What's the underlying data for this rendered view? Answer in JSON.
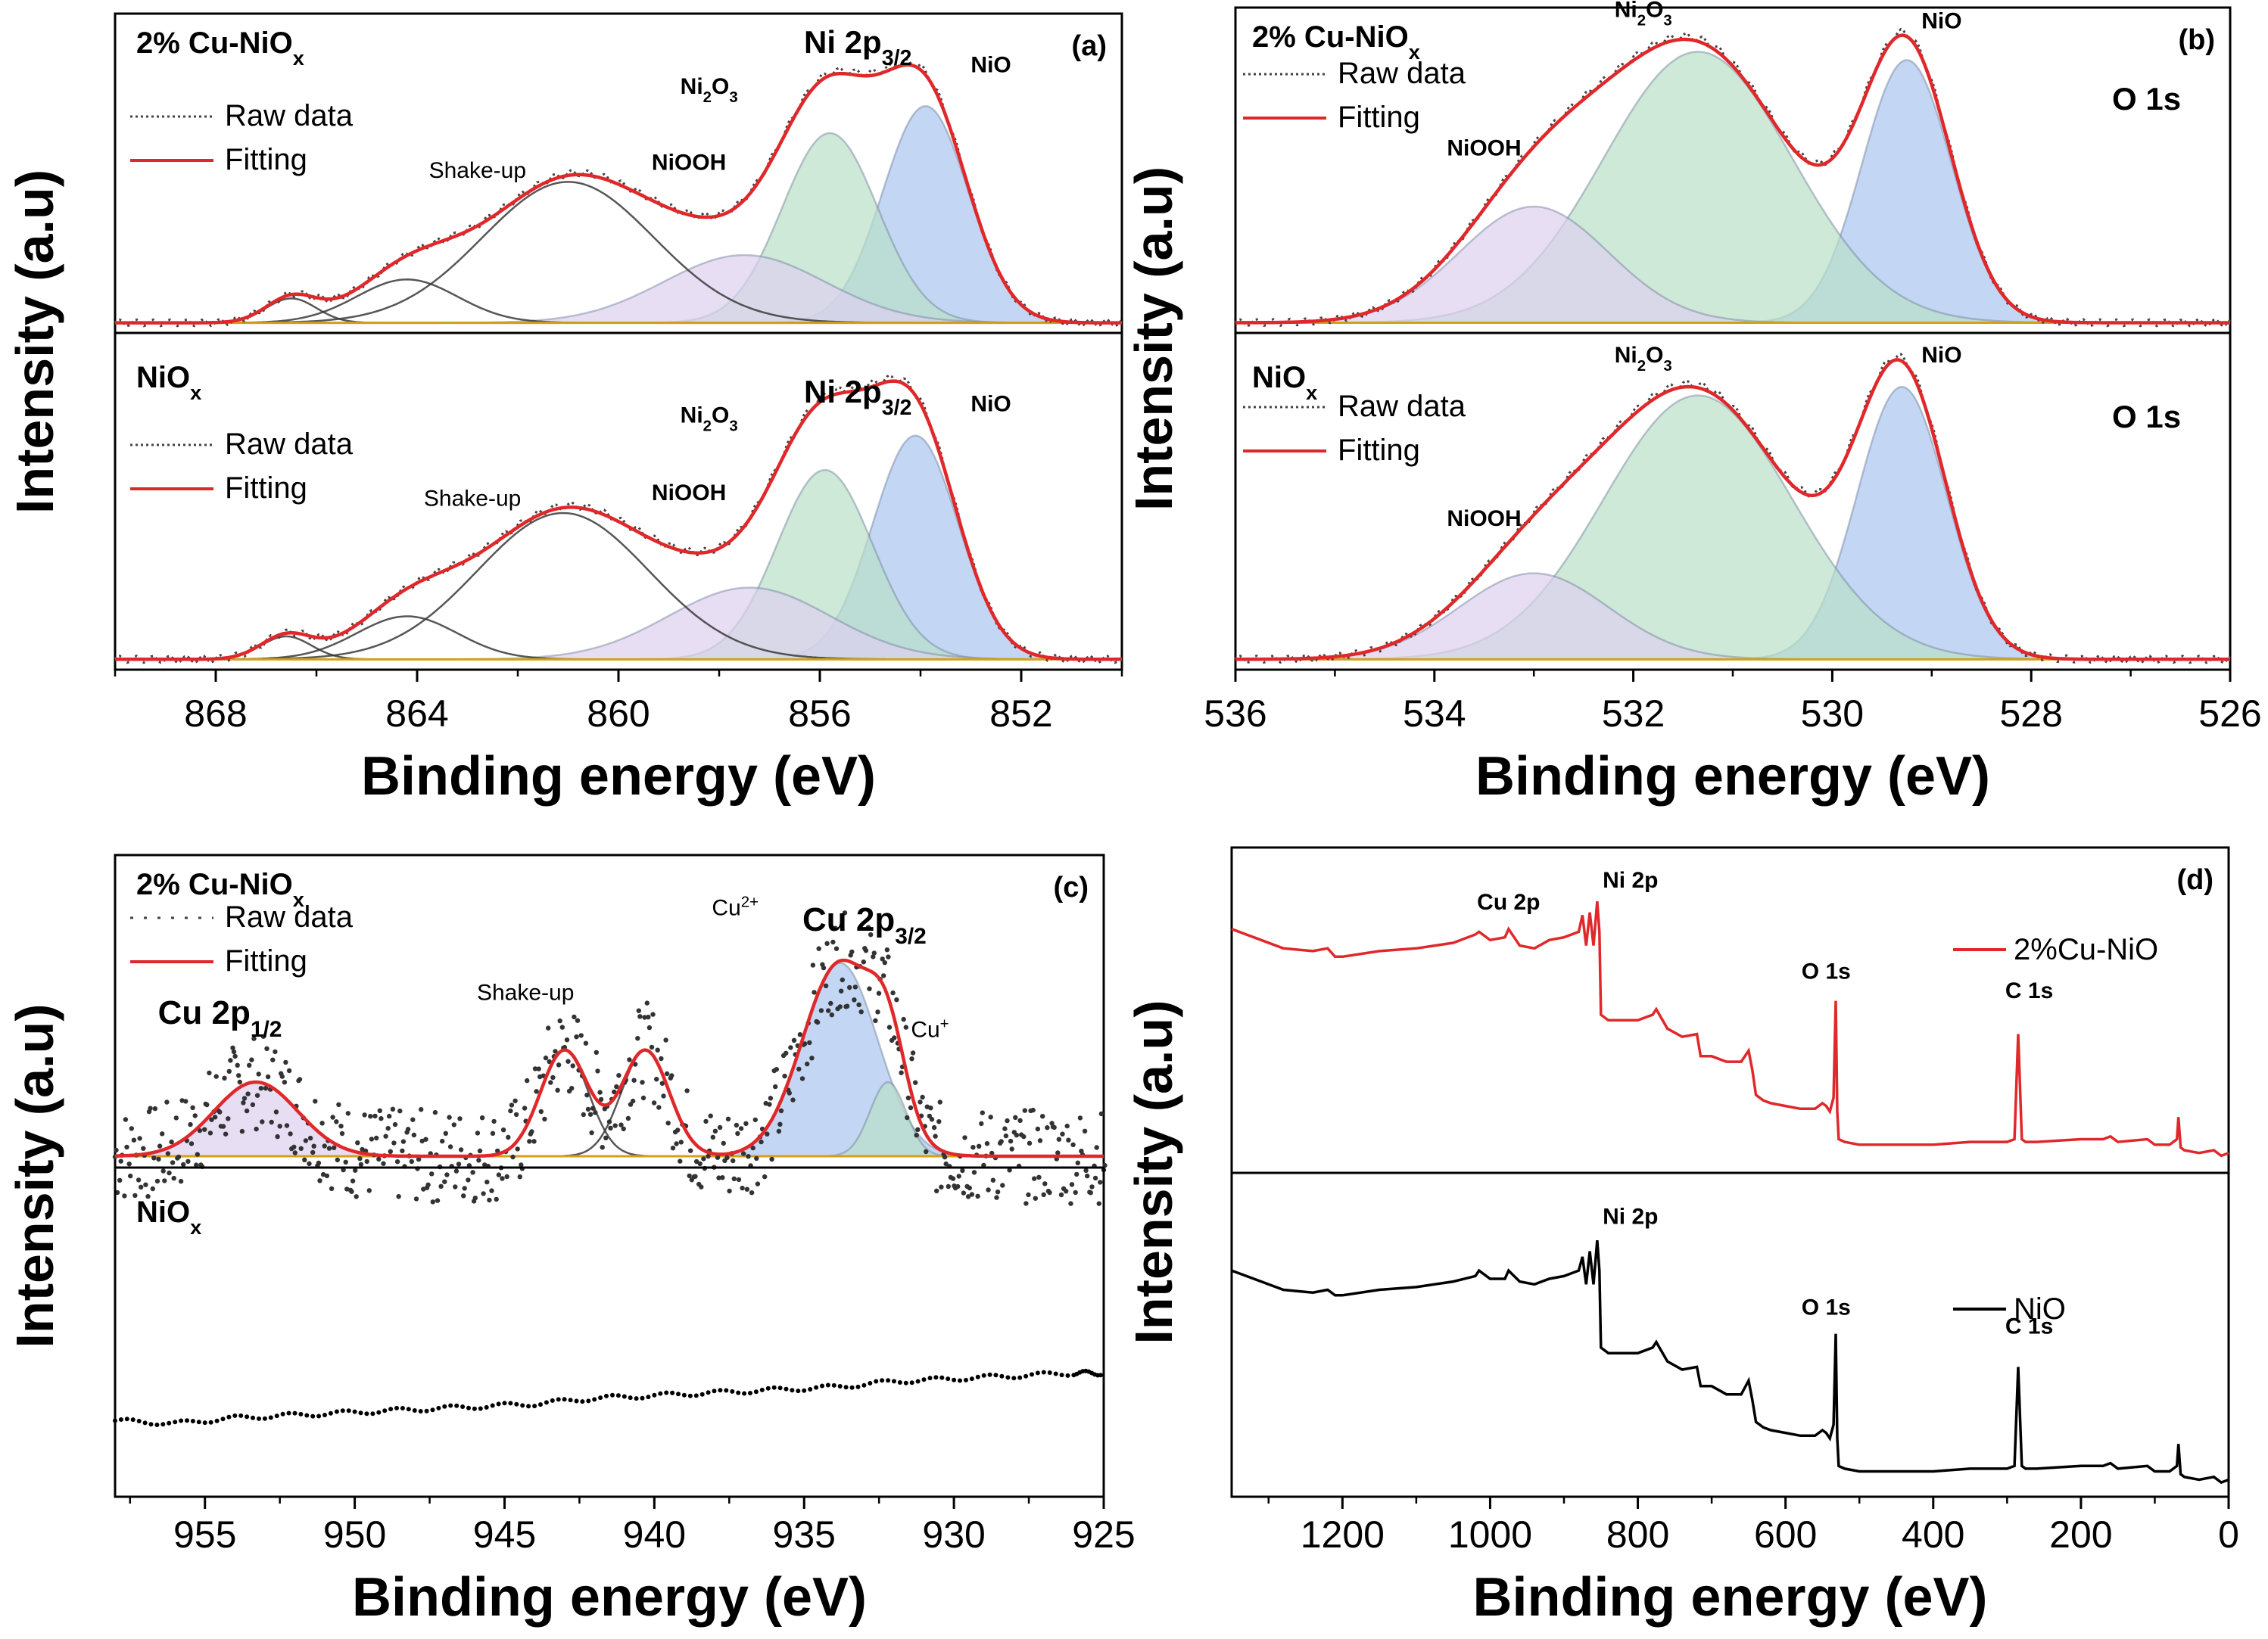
{
  "figure": {
    "caption_hidden": ""
  },
  "chart_data": [
    {
      "id": "a",
      "type": "line",
      "panel_tag": "(a)",
      "xlabel": "Binding energy (eV)",
      "ylabel": "Intensity (a.u)",
      "xlim": [
        870,
        850
      ],
      "xticks": [
        868,
        864,
        860,
        856,
        852
      ],
      "tick_labels": [
        "868",
        "864",
        "860",
        "856",
        "852"
      ],
      "subplots": [
        {
          "sample": "2% Cu-NiO",
          "sample_sub": "x",
          "region": "Ni 2p",
          "region_sub": "3/2",
          "legend": [
            "Raw data",
            "Fitting"
          ],
          "ylim": [
            0,
            1.1
          ],
          "baseline": 0.015,
          "peaks": [
            {
              "label": "NiO",
              "center": 853.9,
              "amp": 0.8,
              "width": 0.85,
              "fill": "#a9c4ee"
            },
            {
              "label": "Ni2O3",
              "label_main": "Ni",
              "label_s1": "2",
              "label_mid": "O",
              "label_s2": "3",
              "center": 855.8,
              "amp": 0.7,
              "width": 0.95,
              "fill": "#b9e0c8"
            },
            {
              "label": "NiOOH",
              "center": 857.5,
              "amp": 0.25,
              "width": 1.6,
              "fill": "#ddd0f0"
            },
            {
              "label": "Shake-up",
              "center": 861.0,
              "amp": 0.52,
              "width": 1.7,
              "fill": "none"
            },
            {
              "label": "",
              "center": 864.2,
              "amp": 0.16,
              "width": 1.0,
              "fill": "none"
            },
            {
              "label": "",
              "center": 866.5,
              "amp": 0.09,
              "width": 0.5,
              "fill": "none"
            }
          ],
          "annotations": [
            {
              "text": "Shake-up",
              "x": 862.8,
              "y": 0.55
            },
            {
              "text": "NiOOH",
              "x": 858.6,
              "y": 0.58
            },
            {
              "text": "Ni2O3",
              "x": 858.2,
              "y": 0.86
            },
            {
              "text": "NiO",
              "x": 852.6,
              "y": 0.94
            }
          ]
        },
        {
          "sample": "NiO",
          "sample_sub": "x",
          "region": "Ni 2p",
          "region_sub": "3/2",
          "legend": [
            "Raw data",
            "Fitting"
          ],
          "ylim": [
            0,
            1.1
          ],
          "baseline": 0.015,
          "peaks": [
            {
              "label": "NiO",
              "center": 854.1,
              "amp": 0.78,
              "width": 0.85,
              "fill": "#a9c4ee"
            },
            {
              "label": "Ni2O3",
              "center": 855.9,
              "amp": 0.66,
              "width": 0.95,
              "fill": "#b9e0c8"
            },
            {
              "label": "NiOOH",
              "center": 857.4,
              "amp": 0.25,
              "width": 1.6,
              "fill": "#ddd0f0"
            },
            {
              "label": "Shake-up",
              "center": 861.1,
              "amp": 0.51,
              "width": 1.7,
              "fill": "none"
            },
            {
              "label": "",
              "center": 864.2,
              "amp": 0.15,
              "width": 1.0,
              "fill": "none"
            },
            {
              "label": "",
              "center": 866.6,
              "amp": 0.08,
              "width": 0.5,
              "fill": "none"
            }
          ],
          "annotations": [
            {
              "text": "Shake-up",
              "x": 862.9,
              "y": 0.55
            },
            {
              "text": "NiOOH",
              "x": 858.6,
              "y": 0.57
            },
            {
              "text": "Ni2O3",
              "x": 858.2,
              "y": 0.84
            },
            {
              "text": "NiO",
              "x": 852.6,
              "y": 0.88
            }
          ]
        }
      ]
    },
    {
      "id": "b",
      "type": "line",
      "panel_tag": "(b)",
      "xlabel": "Binding energy (eV)",
      "ylabel": "Intensity (a.u)",
      "xlim": [
        536,
        526
      ],
      "xticks": [
        536,
        534,
        532,
        530,
        528,
        526
      ],
      "tick_labels": [
        "536",
        "534",
        "532",
        "530",
        "528",
        "526"
      ],
      "subplots": [
        {
          "sample": "2% Cu-NiO",
          "sample_sub": "x",
          "region": "O 1s",
          "region_sub": "",
          "legend": [
            "Raw data",
            "Fitting"
          ],
          "ylim": [
            0,
            1.1
          ],
          "baseline": 0.015,
          "peaks": [
            {
              "label": "NiO",
              "center": 529.25,
              "amp": 0.95,
              "width": 0.45,
              "fill": "#a9c4ee"
            },
            {
              "label": "Ni2O3",
              "center": 531.35,
              "amp": 0.98,
              "width": 0.95,
              "fill": "#b9e0c8"
            },
            {
              "label": "NiOOH",
              "center": 533.0,
              "amp": 0.42,
              "width": 0.75,
              "fill": "#ddd0f0"
            }
          ],
          "annotations": [
            {
              "text": "Ni2O3",
              "x": 531.9,
              "y": 1.12
            },
            {
              "text": "NiO",
              "x": 528.9,
              "y": 1.08
            },
            {
              "text": "NiOOH",
              "x": 533.5,
              "y": 0.62
            }
          ]
        },
        {
          "sample": "NiO",
          "sample_sub": "x",
          "region": "O 1s",
          "region_sub": "",
          "legend": [
            "Raw data",
            "Fitting"
          ],
          "ylim": [
            0,
            1.1
          ],
          "baseline": 0.015,
          "peaks": [
            {
              "label": "NiO",
              "center": 529.3,
              "amp": 0.95,
              "width": 0.45,
              "fill": "#a9c4ee"
            },
            {
              "label": "Ni2O3",
              "center": 531.35,
              "amp": 0.92,
              "width": 0.95,
              "fill": "#b9e0c8"
            },
            {
              "label": "NiOOH",
              "center": 533.0,
              "amp": 0.3,
              "width": 0.75,
              "fill": "#ddd0f0"
            }
          ],
          "annotations": [
            {
              "text": "Ni2O3",
              "x": 531.9,
              "y": 1.05
            },
            {
              "text": "NiO",
              "x": 528.9,
              "y": 1.05
            },
            {
              "text": "NiOOH",
              "x": 533.5,
              "y": 0.48
            }
          ]
        }
      ]
    },
    {
      "id": "c",
      "type": "line",
      "panel_tag": "(c)",
      "xlabel": "Binding energy (eV)",
      "ylabel": "Intensity (a.u)",
      "xlim": [
        958,
        925
      ],
      "xticks": [
        955,
        950,
        945,
        940,
        935,
        930,
        925
      ],
      "tick_labels": [
        "955",
        "950",
        "945",
        "940",
        "935",
        "930",
        "925"
      ],
      "subplots": [
        {
          "sample": "2% Cu-NiO",
          "sample_sub": "x",
          "region": "Cu 2p",
          "region_sub": "3/2",
          "legend": [
            "Raw data",
            "Fitting"
          ],
          "ylim": [
            0,
            1.1
          ],
          "baseline": 0.02,
          "noise": 0.18,
          "peaks": [
            {
              "label": "Cu2+",
              "center": 933.8,
              "amp": 0.73,
              "width": 1.25,
              "fill": "#a9c4ee"
            },
            {
              "label": "Cu+",
              "center": 932.2,
              "amp": 0.28,
              "width": 0.6,
              "fill": "#b9e0c8"
            },
            {
              "label": "Shake-up",
              "center": 943.0,
              "amp": 0.4,
              "width": 0.8,
              "fill": "none"
            },
            {
              "label": "",
              "center": 940.3,
              "amp": 0.4,
              "width": 0.8,
              "fill": "none"
            },
            {
              "label": "Cu 2p1/2",
              "center": 953.3,
              "amp": 0.28,
              "width": 1.4,
              "fill": "#ddd0f0"
            }
          ],
          "annotations": [
            {
              "text": "Cu 2p",
              "sub": "1/2",
              "x": 954.5,
              "y": 0.52,
              "big": true
            },
            {
              "text": "Shake-up",
              "x": 944.3,
              "y": 0.61
            },
            {
              "text": "Cu2+",
              "x": 937.3,
              "y": 0.93
            },
            {
              "text": "Cu+",
              "x": 930.8,
              "y": 0.47
            }
          ]
        },
        {
          "sample": "NiO",
          "sample_sub": "x",
          "region": "",
          "region_sub": "",
          "legend": [],
          "ylim": [
            0,
            1.1
          ],
          "dotted_series": {
            "x": [
              958,
              956,
              954,
              952,
              950,
              948,
              946,
              944,
              942,
              940,
              938,
              936,
              934,
              932,
              930,
              928,
              926,
              925
            ],
            "y": [
              0.25,
              0.24,
              0.26,
              0.27,
              0.28,
              0.29,
              0.3,
              0.31,
              0.33,
              0.34,
              0.35,
              0.36,
              0.37,
              0.39,
              0.4,
              0.41,
              0.42,
              0.42
            ]
          },
          "annotations": []
        }
      ]
    },
    {
      "id": "d",
      "type": "line",
      "panel_tag": "(d)",
      "xlabel": "Binding energy (eV)",
      "ylabel": "Intensity (a.u)",
      "xlim": [
        1350,
        0
      ],
      "xticks": [
        1200,
        1000,
        800,
        600,
        400,
        200,
        0
      ],
      "tick_labels": [
        "1200",
        "1000",
        "800",
        "600",
        "400",
        "200",
        "0"
      ],
      "subplots": [
        {
          "series_name": "2%Cu-NiO",
          "color": "#e0282a",
          "survey": {
            "x": [
              1350,
              1320,
              1280,
              1240,
              1220,
              1210,
              1200,
              1150,
              1100,
              1050,
              1020,
              1015,
              1000,
              980,
              975,
              960,
              940,
              920,
              900,
              880,
              875,
              870,
              865,
              860,
              855,
              852,
              850,
              840,
              820,
              800,
              780,
              775,
              760,
              740,
              720,
              715,
              700,
              680,
              660,
              650,
              645,
              640,
              630,
              620,
              600,
              580,
              560,
              550,
              545,
              540,
              535,
              532,
              530,
              528,
              520,
              500,
              450,
              400,
              350,
              300,
              290,
              285,
              280,
              275,
              260,
              200,
              170,
              160,
              150,
              110,
              100,
              80,
              70,
              68,
              65,
              60,
              40,
              20,
              10,
              0
            ],
            "y": [
              0.86,
              0.83,
              0.79,
              0.78,
              0.79,
              0.76,
              0.76,
              0.78,
              0.79,
              0.81,
              0.84,
              0.85,
              0.82,
              0.83,
              0.86,
              0.8,
              0.79,
              0.82,
              0.83,
              0.85,
              0.91,
              0.8,
              0.92,
              0.8,
              0.96,
              0.85,
              0.55,
              0.53,
              0.53,
              0.53,
              0.55,
              0.57,
              0.5,
              0.47,
              0.48,
              0.4,
              0.4,
              0.38,
              0.38,
              0.42,
              0.35,
              0.26,
              0.24,
              0.23,
              0.22,
              0.21,
              0.21,
              0.23,
              0.22,
              0.2,
              0.25,
              0.6,
              0.2,
              0.1,
              0.09,
              0.08,
              0.08,
              0.08,
              0.09,
              0.09,
              0.1,
              0.48,
              0.1,
              0.09,
              0.09,
              0.1,
              0.1,
              0.11,
              0.09,
              0.1,
              0.08,
              0.08,
              0.1,
              0.18,
              0.07,
              0.06,
              0.05,
              0.06,
              0.04,
              0.05
            ]
          },
          "annotations": [
            {
              "text": "Cu 2p",
              "x": 975,
              "y": 0.93
            },
            {
              "text": "Ni 2p",
              "x": 810,
              "y": 1.01
            },
            {
              "text": "O 1s",
              "x": 545,
              "y": 0.68
            },
            {
              "text": "C 1s",
              "x": 270,
              "y": 0.61
            }
          ]
        },
        {
          "series_name": "NiO",
          "color": "#000000",
          "survey": {
            "x": [
              1350,
              1320,
              1280,
              1240,
              1220,
              1210,
              1200,
              1150,
              1100,
              1050,
              1020,
              1015,
              1000,
              980,
              975,
              960,
              940,
              920,
              900,
              880,
              875,
              870,
              865,
              860,
              855,
              852,
              850,
              840,
              820,
              800,
              780,
              775,
              760,
              740,
              720,
              715,
              700,
              680,
              660,
              650,
              645,
              640,
              630,
              620,
              600,
              580,
              560,
              550,
              545,
              540,
              535,
              532,
              530,
              528,
              520,
              500,
              450,
              400,
              350,
              300,
              290,
              285,
              280,
              275,
              260,
              200,
              170,
              160,
              150,
              110,
              100,
              80,
              70,
              68,
              65,
              60,
              40,
              20,
              10,
              0
            ],
            "y": [
              0.8,
              0.77,
              0.73,
              0.72,
              0.73,
              0.71,
              0.71,
              0.73,
              0.74,
              0.76,
              0.78,
              0.8,
              0.77,
              0.77,
              0.8,
              0.76,
              0.75,
              0.77,
              0.78,
              0.8,
              0.85,
              0.75,
              0.87,
              0.75,
              0.91,
              0.8,
              0.52,
              0.5,
              0.5,
              0.5,
              0.52,
              0.54,
              0.47,
              0.44,
              0.45,
              0.38,
              0.38,
              0.35,
              0.35,
              0.4,
              0.33,
              0.25,
              0.23,
              0.22,
              0.21,
              0.2,
              0.2,
              0.22,
              0.21,
              0.19,
              0.24,
              0.57,
              0.19,
              0.09,
              0.08,
              0.07,
              0.07,
              0.07,
              0.08,
              0.08,
              0.09,
              0.45,
              0.09,
              0.08,
              0.08,
              0.09,
              0.09,
              0.1,
              0.08,
              0.09,
              0.07,
              0.07,
              0.09,
              0.17,
              0.06,
              0.05,
              0.04,
              0.05,
              0.03,
              0.04
            ]
          },
          "annotations": [
            {
              "text": "Ni 2p",
              "x": 810,
              "y": 0.97
            },
            {
              "text": "O 1s",
              "x": 545,
              "y": 0.64
            },
            {
              "text": "C 1s",
              "x": 270,
              "y": 0.57
            }
          ]
        }
      ]
    }
  ],
  "colors": {
    "raw": "#444444",
    "fit": "#e0282a",
    "component": "#3a3a3a",
    "baseline": "#d4a017",
    "nio_fill": "#a9c4ee",
    "ni2o3_fill": "#b9e0c8",
    "niooh_fill": "#ddd0f0"
  }
}
